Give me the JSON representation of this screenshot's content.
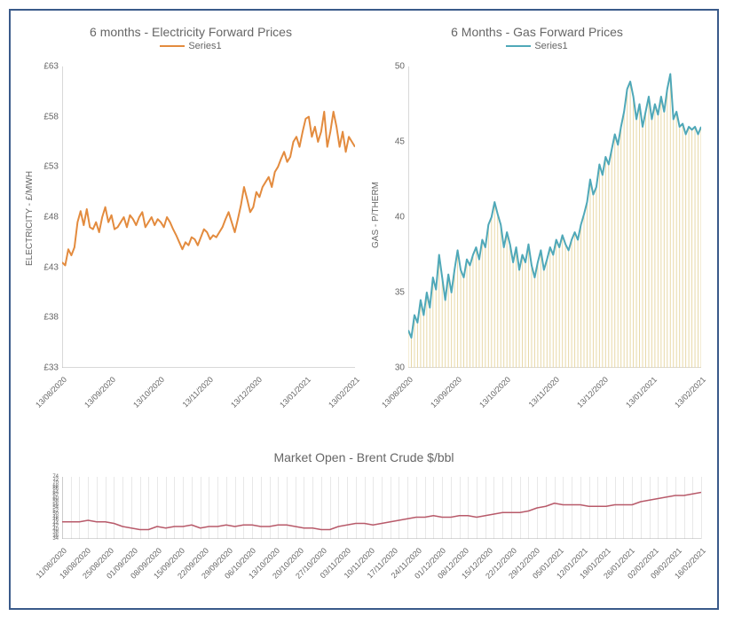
{
  "border_color": "#3a5a8a",
  "charts": {
    "electricity": {
      "title": "6 months - Electricity Forward Prices",
      "legend_label": "Series1",
      "series_color": "#e38b3e",
      "y_axis_label": "ELECTRICITY - £/MWH",
      "y_prefix": "£",
      "ylim": [
        33,
        63
      ],
      "ytick_step": 5,
      "line_width": 2,
      "x_labels": [
        "13/08/2020",
        "13/09/2020",
        "13/10/2020",
        "13/11/2020",
        "13/12/2020",
        "13/01/2021",
        "13/02/2021"
      ],
      "values": [
        43.5,
        43.2,
        44.8,
        44.2,
        45.0,
        47.5,
        48.6,
        47.2,
        48.8,
        47.0,
        46.8,
        47.5,
        46.5,
        48.0,
        49.0,
        47.5,
        48.2,
        46.8,
        47.0,
        47.5,
        48.0,
        47.0,
        48.2,
        47.8,
        47.2,
        48.0,
        48.5,
        47.0,
        47.5,
        48.0,
        47.2,
        47.8,
        47.5,
        47.0,
        48.0,
        47.5,
        46.8,
        46.2,
        45.5,
        44.8,
        45.5,
        45.2,
        46.0,
        45.8,
        45.2,
        46.0,
        46.8,
        46.5,
        45.8,
        46.2,
        46.0,
        46.5,
        47.0,
        47.8,
        48.5,
        47.5,
        46.5,
        47.8,
        49.2,
        51.0,
        49.8,
        48.5,
        49.0,
        50.5,
        50.0,
        51.0,
        51.5,
        52.0,
        51.0,
        52.5,
        53.0,
        53.8,
        54.5,
        53.5,
        54.0,
        55.5,
        56.0,
        55.0,
        56.5,
        57.8,
        58.0,
        56.0,
        57.0,
        55.5,
        56.5,
        58.5,
        55.0,
        56.5,
        58.5,
        57.0,
        55.0,
        56.5,
        54.5,
        56.0,
        55.5,
        55.0
      ]
    },
    "gas": {
      "title": "6 Months -  Gas Forward Prices",
      "legend_label": "Series1",
      "series_color": "#4fa8b8",
      "droplines_color": "#e8d8a8",
      "y_axis_label": "GAS - P/THERM",
      "y_prefix": "",
      "ylim": [
        30,
        50
      ],
      "ytick_step": 5,
      "line_width": 2,
      "x_labels": [
        "13/08/2020",
        "13/09/2020",
        "13/10/2020",
        "13/11/2020",
        "13/12/2020",
        "13/01/2021",
        "13/02/2021"
      ],
      "values": [
        32.5,
        32.0,
        33.5,
        33.0,
        34.5,
        33.5,
        35.0,
        34.0,
        36.0,
        35.2,
        37.5,
        36.0,
        34.5,
        36.2,
        35.0,
        36.5,
        37.8,
        36.5,
        36.0,
        37.2,
        36.8,
        37.5,
        38.0,
        37.2,
        38.5,
        38.0,
        39.5,
        40.0,
        41.0,
        40.2,
        39.5,
        38.0,
        39.0,
        38.2,
        37.0,
        38.0,
        36.5,
        37.5,
        37.0,
        38.2,
        36.8,
        36.0,
        37.0,
        37.8,
        36.5,
        37.2,
        38.0,
        37.5,
        38.5,
        38.0,
        38.8,
        38.2,
        37.8,
        38.5,
        39.0,
        38.5,
        39.5,
        40.2,
        41.0,
        42.5,
        41.5,
        42.0,
        43.5,
        42.8,
        44.0,
        43.5,
        44.5,
        45.5,
        44.8,
        46.0,
        47.0,
        48.5,
        49.0,
        48.0,
        46.5,
        47.5,
        46.0,
        47.0,
        48.0,
        46.5,
        47.5,
        46.8,
        48.0,
        47.0,
        48.5,
        49.5,
        46.5,
        47.0,
        46.0,
        46.2,
        45.5,
        46.0,
        45.8,
        46.0,
        45.5,
        46.0
      ]
    },
    "brent": {
      "title": "Market Open - Brent Crude $/bbl",
      "series_color": "#b85a6a",
      "gridline_color": "#e8e8e8",
      "ylim": [
        34,
        74
      ],
      "yticks": [
        34,
        36,
        38,
        40,
        42,
        44,
        46,
        48,
        50,
        52,
        54,
        56,
        58,
        60,
        62,
        64,
        66,
        68,
        70,
        72,
        74
      ],
      "line_width": 1.5,
      "x_labels": [
        "11/08/2020",
        "18/08/2020",
        "25/08/2020",
        "01/09/2020",
        "08/09/2020",
        "15/09/2020",
        "22/09/2020",
        "29/09/2020",
        "06/10/2020",
        "13/10/2020",
        "20/10/2020",
        "27/10/2020",
        "03/11/2020",
        "10/11/2020",
        "17/11/2020",
        "24/11/2020",
        "01/12/2020",
        "08/12/2020",
        "15/12/2020",
        "22/12/2020",
        "29/12/2020",
        "05/01/2021",
        "12/01/2021",
        "19/01/2021",
        "26/01/2021",
        "02/02/2021",
        "09/02/2021",
        "16/02/2021"
      ],
      "values": [
        45,
        45,
        45,
        46,
        45,
        45,
        44,
        42,
        41,
        40,
        40,
        42,
        41,
        42,
        42,
        43,
        41,
        42,
        42,
        43,
        42,
        43,
        43,
        42,
        42,
        43,
        43,
        42,
        41,
        41,
        40,
        40,
        42,
        43,
        44,
        44,
        43,
        44,
        45,
        46,
        47,
        48,
        48,
        49,
        48,
        48,
        49,
        49,
        48,
        49,
        50,
        51,
        51,
        51,
        52,
        54,
        55,
        57,
        56,
        56,
        56,
        55,
        55,
        55,
        56,
        56,
        56,
        58,
        59,
        60,
        61,
        62,
        62,
        63,
        64
      ]
    }
  }
}
